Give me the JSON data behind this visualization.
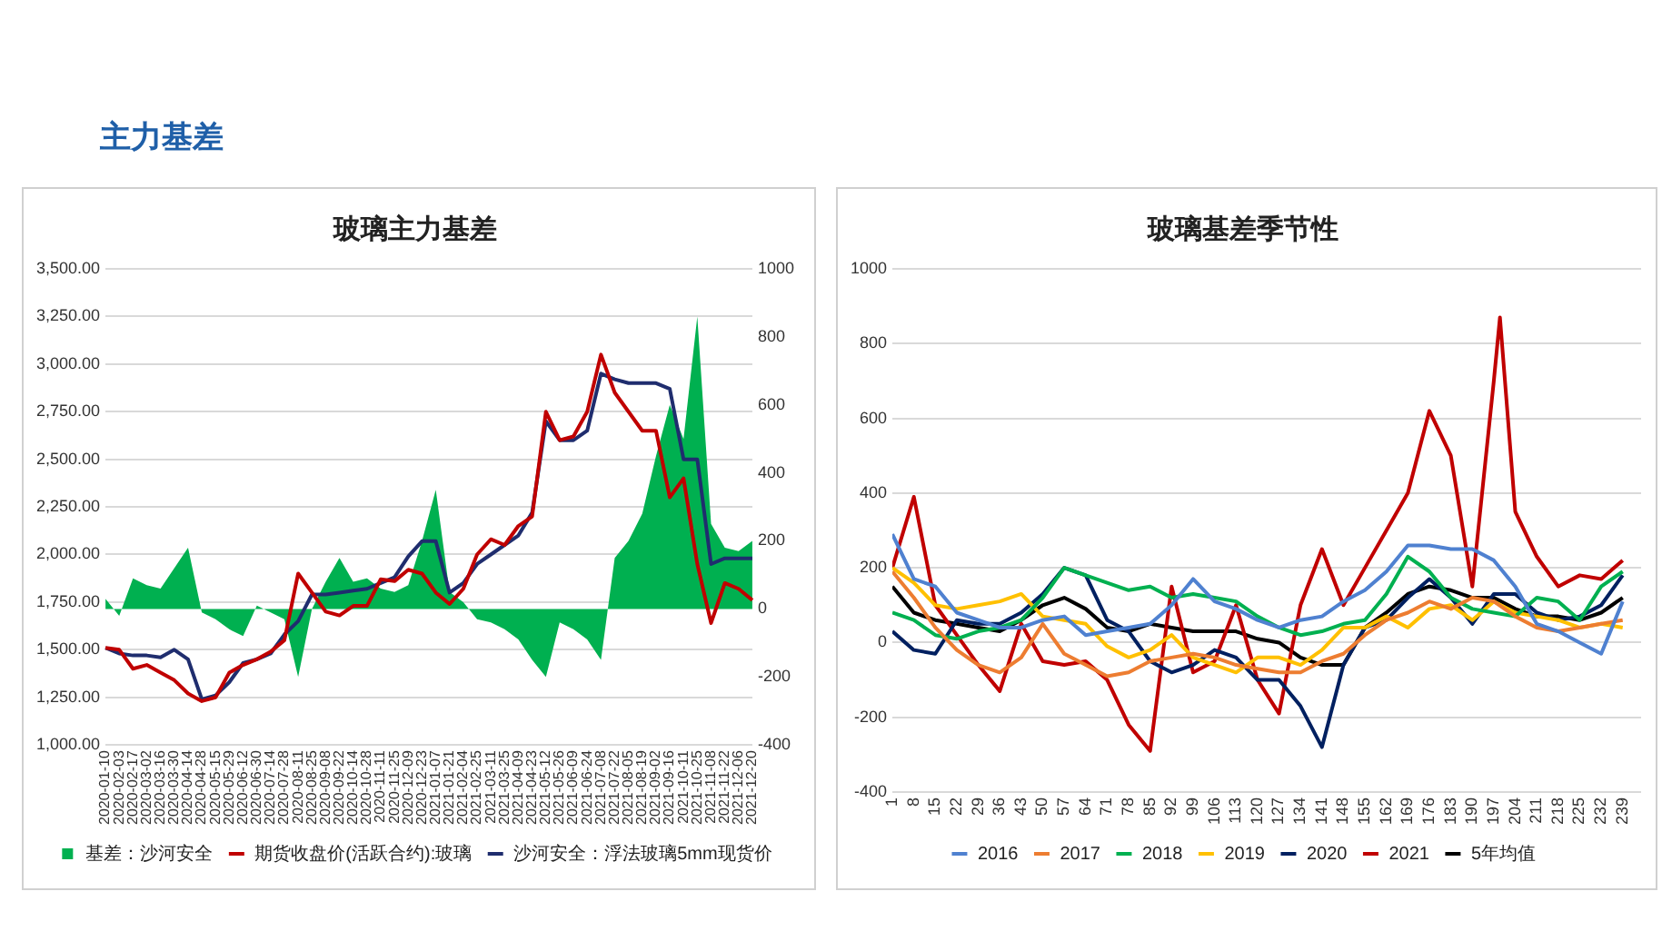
{
  "chart_data": [
    {
      "type": "line",
      "title": "玻璃主力基差",
      "annotations": [
        "主力基差"
      ],
      "categories": [
        "2020-01-10",
        "2020-02-03",
        "2020-02-17",
        "2020-03-02",
        "2020-03-16",
        "2020-03-30",
        "2020-04-14",
        "2020-04-28",
        "2020-05-15",
        "2020-05-29",
        "2020-06-12",
        "2020-06-30",
        "2020-07-14",
        "2020-07-28",
        "2020-08-11",
        "2020-08-25",
        "2020-09-08",
        "2020-09-22",
        "2020-10-14",
        "2020-10-28",
        "2020-11-11",
        "2020-11-25",
        "2020-12-09",
        "2020-12-23",
        "2021-01-07",
        "2021-01-21",
        "2021-02-04",
        "2021-02-25",
        "2021-03-11",
        "2021-03-25",
        "2021-04-09",
        "2021-04-23",
        "2021-05-12",
        "2021-05-26",
        "2021-06-09",
        "2021-06-24",
        "2021-07-08",
        "2021-07-22",
        "2021-08-05",
        "2021-08-19",
        "2021-09-02",
        "2021-09-16",
        "2021-10-11",
        "2021-10-25",
        "2021-11-08",
        "2021-11-22",
        "2021-12-06",
        "2021-12-20"
      ],
      "series": [
        {
          "name": "基差：沙河安全",
          "type": "area",
          "axis": "y2",
          "color": "#00b050",
          "values": [
            30,
            -20,
            90,
            70,
            60,
            120,
            180,
            -10,
            -30,
            -60,
            -80,
            10,
            -10,
            -30,
            -200,
            0,
            80,
            150,
            80,
            90,
            60,
            50,
            70,
            200,
            350,
            50,
            20,
            -30,
            -40,
            -60,
            -90,
            -150,
            -200,
            -40,
            -60,
            -90,
            -150,
            150,
            200,
            280,
            450,
            600,
            500,
            860,
            250,
            180,
            170,
            200
          ]
        },
        {
          "name": "期货收盘价(活跃合约):玻璃",
          "color": "#c00000",
          "values": [
            1510,
            1500,
            1400,
            1420,
            1380,
            1340,
            1270,
            1230,
            1250,
            1380,
            1420,
            1450,
            1490,
            1550,
            1900,
            1800,
            1700,
            1680,
            1730,
            1730,
            1870,
            1860,
            1920,
            1900,
            1800,
            1740,
            1820,
            2000,
            2080,
            2050,
            2150,
            2200,
            2750,
            2600,
            2620,
            2750,
            3050,
            2850,
            2750,
            2650,
            2650,
            2300,
            2400,
            1950,
            1640,
            1850,
            1820,
            1760
          ]
        },
        {
          "name": "沙河安全：浮法玻璃5mm现货价",
          "color": "#1f2d6e",
          "values": [
            1510,
            1480,
            1470,
            1470,
            1460,
            1500,
            1450,
            1240,
            1260,
            1330,
            1430,
            1450,
            1480,
            1580,
            1650,
            1790,
            1790,
            1800,
            1810,
            1820,
            1850,
            1880,
            1990,
            2070,
            2070,
            1800,
            1850,
            1950,
            2000,
            2050,
            2100,
            2220,
            2700,
            2600,
            2600,
            2650,
            2950,
            2920,
            2900,
            2900,
            2900,
            2870,
            2500,
            2500,
            1950,
            1980,
            1980,
            1980
          ]
        }
      ],
      "ylim": [
        1000,
        3500
      ],
      "yticks": [
        {
          "value": 1000,
          "label": "1,000.00"
        },
        {
          "value": 1250,
          "label": "1,250.00"
        },
        {
          "value": 1500,
          "label": "1,500.00"
        },
        {
          "value": 1750,
          "label": "1,750.00"
        },
        {
          "value": 2000,
          "label": "2,000.00"
        },
        {
          "value": 2250,
          "label": "2,250.00"
        },
        {
          "value": 2500,
          "label": "2,500.00"
        },
        {
          "value": 2750,
          "label": "2,750.00"
        },
        {
          "value": 3000,
          "label": "3,000.00"
        },
        {
          "value": 3250,
          "label": "3,250.00"
        },
        {
          "value": 3500,
          "label": "3,500.00"
        }
      ],
      "y2lim": [
        -400,
        1000
      ],
      "y2ticks": [
        -400,
        -200,
        0,
        200,
        400,
        600,
        800,
        1000
      ],
      "grid": "y",
      "legend": "bottom",
      "marker": "none",
      "line_style": "solid"
    },
    {
      "type": "line",
      "title": "玻璃基差季节性",
      "x": [
        1,
        8,
        15,
        22,
        29,
        36,
        43,
        50,
        57,
        64,
        71,
        78,
        85,
        92,
        99,
        106,
        113,
        120,
        127,
        134,
        141,
        148,
        155,
        162,
        169,
        176,
        183,
        190,
        197,
        204,
        211,
        218,
        225,
        232,
        239
      ],
      "series": [
        {
          "name": "2016",
          "color": "#4f81d0",
          "values": [
            290,
            170,
            150,
            80,
            60,
            40,
            40,
            60,
            70,
            20,
            30,
            40,
            50,
            100,
            170,
            110,
            90,
            60,
            40,
            60,
            70,
            110,
            140,
            190,
            260,
            260,
            250,
            250,
            220,
            150,
            50,
            30,
            0,
            -30,
            110
          ]
        },
        {
          "name": "2017",
          "color": "#ed7d31",
          "values": [
            190,
            120,
            40,
            -20,
            -60,
            -80,
            -40,
            50,
            -30,
            -60,
            -90,
            -80,
            -50,
            -40,
            -30,
            -40,
            -60,
            -70,
            -80,
            -80,
            -50,
            -30,
            20,
            60,
            80,
            110,
            90,
            120,
            110,
            70,
            40,
            30,
            40,
            50,
            60
          ]
        },
        {
          "name": "2018",
          "color": "#00b050",
          "values": [
            80,
            60,
            20,
            10,
            30,
            40,
            60,
            120,
            200,
            180,
            160,
            140,
            150,
            120,
            130,
            120,
            110,
            70,
            40,
            20,
            30,
            50,
            60,
            130,
            230,
            190,
            120,
            90,
            80,
            70,
            120,
            110,
            60,
            150,
            190
          ]
        },
        {
          "name": "2019",
          "color": "#ffc000",
          "values": [
            200,
            160,
            100,
            90,
            100,
            110,
            130,
            70,
            60,
            50,
            -10,
            -40,
            -20,
            20,
            -40,
            -60,
            -80,
            -40,
            -40,
            -60,
            -20,
            40,
            40,
            70,
            40,
            90,
            100,
            60,
            110,
            80,
            70,
            60,
            40,
            50,
            40
          ]
        },
        {
          "name": "2020",
          "color": "#002060",
          "values": [
            30,
            -20,
            -30,
            60,
            50,
            50,
            80,
            130,
            200,
            180,
            60,
            30,
            -50,
            -80,
            -60,
            -20,
            -40,
            -100,
            -100,
            -170,
            -280,
            -60,
            40,
            60,
            120,
            170,
            120,
            50,
            130,
            130,
            80,
            60,
            70,
            100,
            180
          ]
        },
        {
          "name": "2021",
          "color": "#c00000",
          "x": [
            1,
            8,
            15,
            22,
            29,
            36,
            43,
            50,
            57,
            64,
            71,
            78,
            85,
            92,
            99,
            106,
            113,
            120,
            127,
            134,
            141,
            148,
            155,
            162,
            169,
            176,
            183,
            190,
            197,
            199,
            204,
            211,
            218,
            225,
            232,
            239
          ],
          "values": [
            200,
            390,
            100,
            20,
            -60,
            -130,
            50,
            -50,
            -60,
            -50,
            -100,
            -220,
            -290,
            150,
            -80,
            -50,
            100,
            -100,
            -190,
            100,
            250,
            100,
            200,
            300,
            400,
            620,
            500,
            150,
            700,
            870,
            350,
            230,
            150,
            180,
            170,
            220
          ]
        },
        {
          "name": "5年均值",
          "color": "#000000",
          "values": [
            150,
            80,
            60,
            50,
            40,
            30,
            60,
            100,
            120,
            90,
            40,
            30,
            50,
            40,
            30,
            30,
            30,
            10,
            0,
            -40,
            -60,
            -60,
            40,
            80,
            130,
            150,
            140,
            120,
            120,
            90,
            70,
            70,
            60,
            80,
            120
          ]
        }
      ],
      "xlim": [
        1,
        245
      ],
      "xticks": [
        1,
        8,
        15,
        22,
        29,
        36,
        43,
        50,
        57,
        64,
        71,
        78,
        85,
        92,
        99,
        106,
        113,
        120,
        127,
        134,
        141,
        148,
        155,
        162,
        169,
        176,
        183,
        190,
        197,
        204,
        211,
        218,
        225,
        232,
        239
      ],
      "ylim": [
        -400,
        1000
      ],
      "yticks": [
        -400,
        -200,
        0,
        200,
        400,
        600,
        800,
        1000
      ],
      "grid": "y",
      "legend": "bottom",
      "marker": "none",
      "line_style": "solid"
    }
  ]
}
